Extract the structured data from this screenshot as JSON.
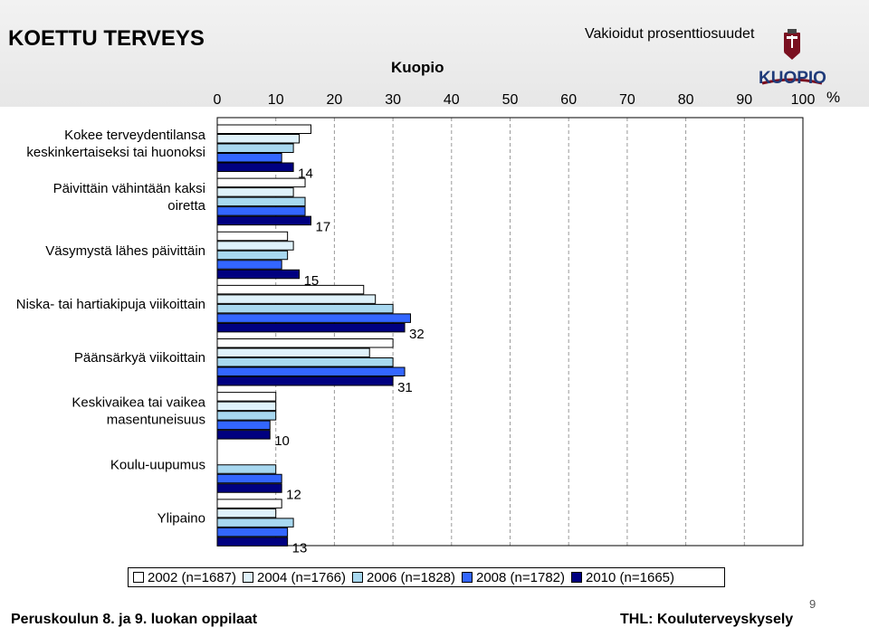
{
  "header": {
    "title": "KOETTU TERVEYS",
    "subtitle": "Vakioidut prosenttiosuudet",
    "place": "Kuopio",
    "logo_text": "KUOPIO",
    "unit": "%"
  },
  "footer": {
    "left": "Peruskoulun 8. ja 9. luokan oppilaat",
    "right": "THL: Kouluterveyskysely",
    "page_number": "9"
  },
  "colors": {
    "2002": "#ffffff",
    "2004": "#dff2fb",
    "2006": "#a8d8f0",
    "2008": "#3366ff",
    "2010": "#000080"
  },
  "chart_data": {
    "type": "bar",
    "orientation": "horizontal",
    "xlim": [
      0,
      100
    ],
    "xticks": [
      "0",
      "10",
      "20",
      "30",
      "40",
      "50",
      "60",
      "70",
      "80",
      "90",
      "100"
    ],
    "grid": "vertical dashed",
    "legend_placement": "bottom",
    "categories": [
      "Kokee terveydentilansa keskinkertaiseksi tai huonoksi",
      "Päivittäin vähintään kaksi oiretta",
      "Väsymystä lähes päivittäin",
      "Niska- tai hartiakipuja viikoittain",
      "Päänsärkyä viikoittain",
      "Keskivaikea tai vaikea masentuneisuus",
      "Koulu-uupumus",
      "Ylipaino"
    ],
    "category_lines": [
      [
        "Kokee terveydentilansa",
        "keskinkertaiseksi tai huonoksi"
      ],
      [
        "Päivittäin vähintään kaksi",
        "oiretta"
      ],
      [
        "Väsymystä lähes päivittäin"
      ],
      [
        "Niska- tai hartiakipuja viikoittain"
      ],
      [
        "Päänsärkyä viikoittain"
      ],
      [
        "Keskivaikea tai vaikea",
        "masentuneisuus"
      ],
      [
        "Koulu-uupumus"
      ],
      [
        "Ylipaino"
      ]
    ],
    "series": [
      {
        "name": "2002 (n=1687)",
        "color": "#ffffff",
        "values": [
          16,
          15,
          12,
          25,
          30,
          10,
          null,
          11
        ]
      },
      {
        "name": "2004 (n=1766)",
        "color": "#dff2fb",
        "values": [
          14,
          13,
          13,
          27,
          26,
          10,
          null,
          10
        ]
      },
      {
        "name": "2006 (n=1828)",
        "color": "#a8d8f0",
        "values": [
          13,
          15,
          12,
          30,
          30,
          10,
          10,
          13
        ]
      },
      {
        "name": "2008 (n=1782)",
        "color": "#3366ff",
        "values": [
          11,
          15,
          11,
          33,
          32,
          9,
          11,
          12
        ]
      },
      {
        "name": "2010 (n=1665)",
        "color": "#000080",
        "values": [
          13,
          16,
          14,
          32,
          30,
          9,
          11,
          12
        ]
      }
    ],
    "data_labels": [
      "14",
      "17",
      "15",
      "32",
      "31",
      "10",
      "12",
      "13"
    ]
  }
}
